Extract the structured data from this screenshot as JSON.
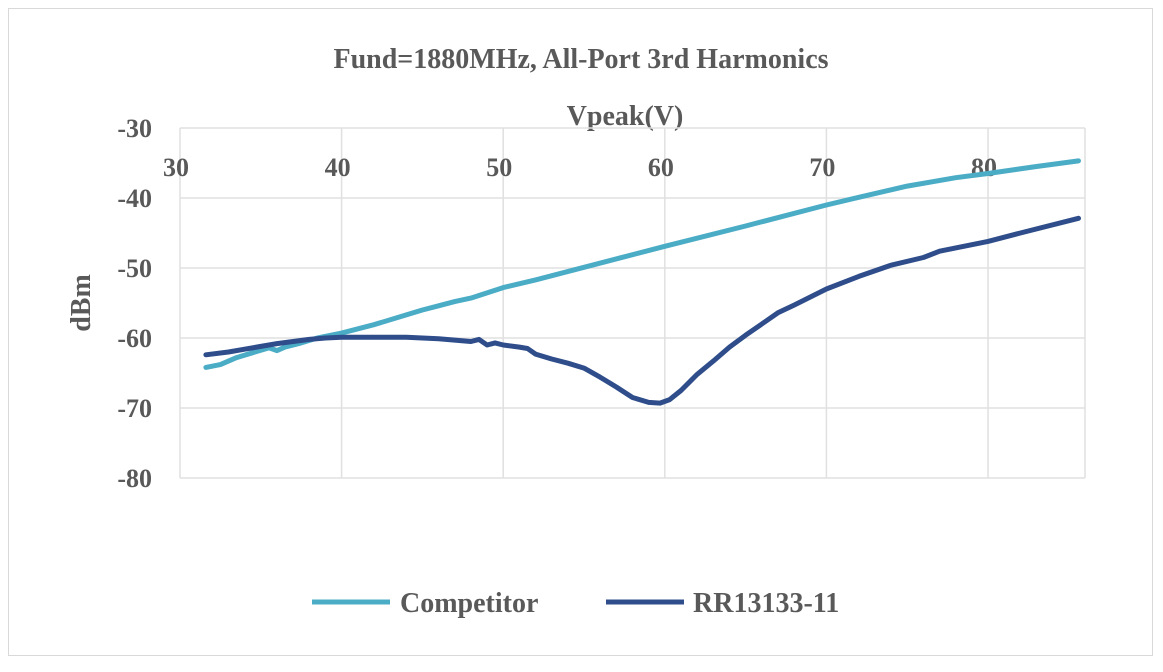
{
  "chart_data": {
    "type": "line",
    "title": "Fund=1880MHz, All-Port 3rd Harmonics",
    "xlabel": "Vpeak(V)",
    "ylabel": "dBm",
    "xlim": [
      30,
      86
    ],
    "ylim": [
      -80,
      -30
    ],
    "x_ticks": [
      "30",
      "40",
      "50",
      "60",
      "70",
      "80"
    ],
    "y_ticks": [
      "-30",
      "-40",
      "-50",
      "-60",
      "-70",
      "-80"
    ],
    "x_axis_position": "top",
    "grid": true,
    "legend_position": "bottom",
    "series": [
      {
        "name": "Competitor",
        "color": "#4bacc6",
        "x": [
          31.6,
          32.5,
          33.5,
          34.5,
          35.5,
          36,
          36.5,
          37.5,
          38.5,
          40,
          42,
          44,
          45,
          46,
          47,
          48,
          50,
          52,
          55,
          60,
          65,
          70,
          72,
          75,
          78,
          80,
          83,
          85.6
        ],
        "y": [
          -64.2,
          -63.8,
          -62.8,
          -62.1,
          -61.4,
          -61.8,
          -61.3,
          -60.7,
          -60.0,
          -59.3,
          -58.1,
          -56.7,
          -56.0,
          -55.4,
          -54.8,
          -54.3,
          -52.8,
          -51.7,
          -49.9,
          -46.9,
          -44.0,
          -41.0,
          -39.9,
          -38.3,
          -37.1,
          -36.5,
          -35.5,
          -34.7
        ]
      },
      {
        "name": "RR13133-11",
        "color": "#2e4d8a",
        "x": [
          31.6,
          33,
          34,
          35,
          36,
          37,
          38,
          39,
          40,
          41,
          42,
          43,
          44,
          45,
          46,
          47,
          48,
          48.5,
          49,
          49.5,
          50,
          51,
          51.5,
          52,
          53,
          54,
          55,
          56,
          57,
          58,
          59,
          59.7,
          60.3,
          61,
          62,
          63,
          64,
          65,
          66,
          67,
          68,
          70,
          72,
          74,
          76,
          77,
          80,
          82,
          85.6
        ],
        "y": [
          -62.4,
          -62.0,
          -61.6,
          -61.2,
          -60.8,
          -60.5,
          -60.2,
          -60.0,
          -59.9,
          -59.9,
          -59.9,
          -59.9,
          -59.9,
          -60.0,
          -60.1,
          -60.3,
          -60.5,
          -60.2,
          -61.0,
          -60.7,
          -61.0,
          -61.3,
          -61.5,
          -62.3,
          -63.0,
          -63.6,
          -64.3,
          -65.6,
          -67.0,
          -68.5,
          -69.2,
          -69.3,
          -68.8,
          -67.5,
          -65.2,
          -63.3,
          -61.3,
          -59.6,
          -58.0,
          -56.4,
          -55.3,
          -53.0,
          -51.2,
          -49.6,
          -48.5,
          -47.6,
          -46.2,
          -45.0,
          -42.9
        ]
      }
    ]
  }
}
